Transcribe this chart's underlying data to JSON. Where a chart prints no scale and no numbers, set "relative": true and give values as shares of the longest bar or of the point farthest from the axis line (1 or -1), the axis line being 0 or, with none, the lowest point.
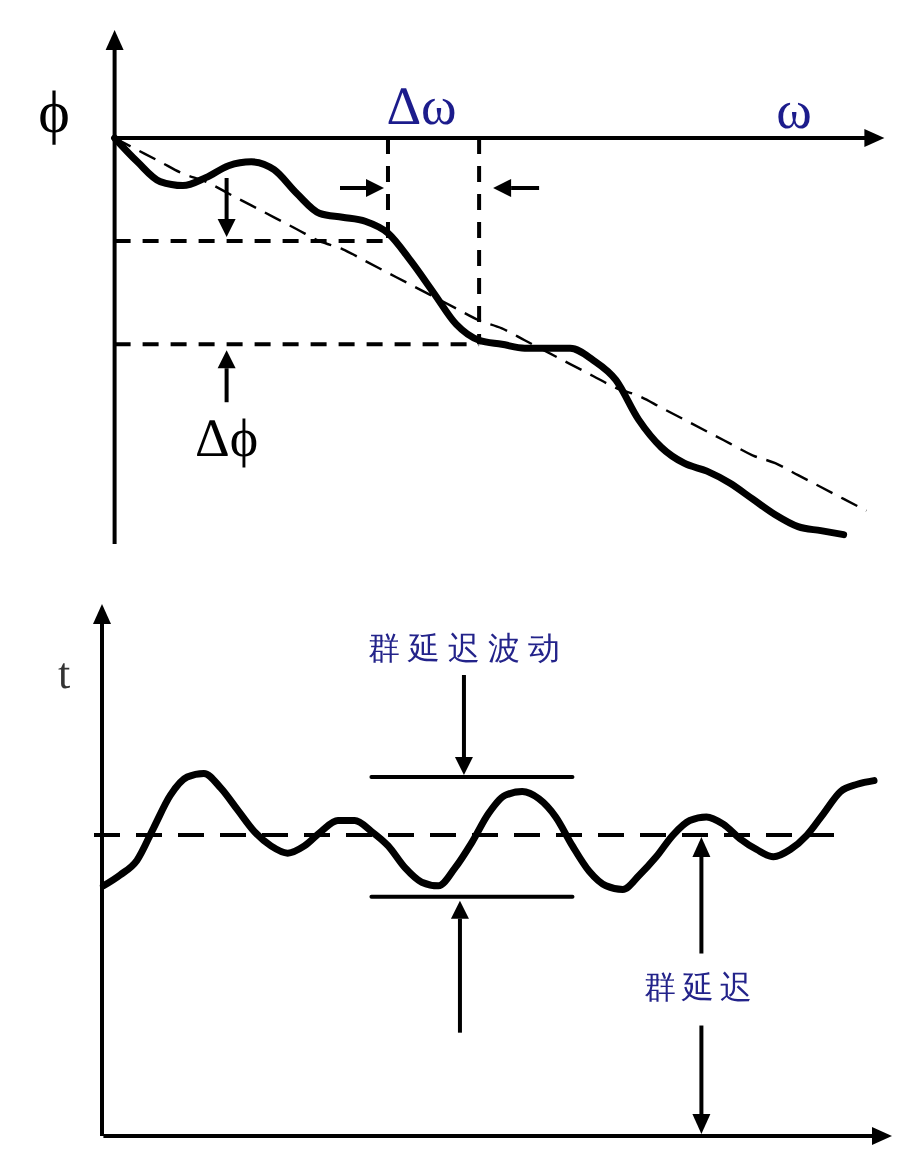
{
  "chart_data": [
    {
      "type": "line",
      "relative": true,
      "xlabel": "ω",
      "ylabel": "ϕ",
      "annotations": [
        "Δω",
        "Δϕ"
      ],
      "categories": [
        null,
        null,
        null,
        null,
        null,
        null,
        null,
        null,
        null,
        null,
        null,
        null,
        null,
        null,
        null,
        null,
        null,
        null,
        null,
        null,
        null,
        null,
        null,
        null,
        null,
        null,
        null,
        null,
        null,
        null,
        null,
        null,
        null,
        null
      ],
      "series": [
        {
          "color": "#000000",
          "values": [
            0,
            -0.06,
            -0.11,
            -0.12,
            -0.1,
            -0.07,
            -0.06,
            -0.08,
            -0.14,
            -0.19,
            -0.2,
            -0.21,
            -0.24,
            -0.31,
            -0.39,
            -0.47,
            -0.51,
            -0.52,
            -0.53,
            -0.53,
            -0.53,
            -0.56,
            -0.61,
            -0.71,
            -0.78,
            -0.82,
            -0.84,
            -0.87,
            -0.91,
            -0.95,
            -0.98,
            -0.99,
            -1,
            null
          ]
        },
        {
          "color": "#000000",
          "line_style": "dashed",
          "values": [
            0,
            -0.03,
            -0.06,
            -0.09,
            -0.11,
            -0.14,
            -0.17,
            -0.2,
            -0.23,
            -0.26,
            -0.28,
            -0.31,
            -0.34,
            -0.37,
            -0.4,
            -0.43,
            -0.46,
            -0.48,
            -0.51,
            -0.54,
            -0.57,
            -0.6,
            -0.63,
            -0.65,
            -0.68,
            -0.71,
            -0.74,
            -0.77,
            -0.8,
            -0.82,
            -0.85,
            -0.88,
            -0.91,
            -0.94
          ]
        },
        {
          "color": "#000000",
          "line_style": "dashed",
          "values": [
            -0.26,
            -0.26,
            -0.26,
            -0.26,
            -0.26,
            -0.26,
            -0.26,
            -0.26,
            -0.26,
            -0.26,
            -0.26,
            -0.26,
            -0.26,
            null,
            null,
            null,
            null,
            null,
            null,
            null,
            null,
            null,
            null,
            null,
            null,
            null,
            null,
            null,
            null,
            null,
            null,
            null,
            null,
            null
          ]
        },
        {
          "color": "#000000",
          "line_style": "dashed",
          "values": [
            -0.52,
            -0.52,
            -0.52,
            -0.52,
            -0.52,
            -0.52,
            -0.52,
            -0.52,
            -0.52,
            -0.52,
            -0.52,
            -0.52,
            -0.52,
            -0.52,
            -0.52,
            -0.52,
            -0.52,
            null,
            null,
            null,
            null,
            null,
            null,
            null,
            null,
            null,
            null,
            null,
            null,
            null,
            null,
            null,
            null,
            null
          ]
        }
      ]
    },
    {
      "type": "line",
      "relative": true,
      "ylabel": "t",
      "annotations": [
        "群延迟波动",
        "群延迟"
      ],
      "categories": [
        null,
        null,
        null,
        null,
        null,
        null,
        null,
        null,
        null,
        null,
        null,
        null,
        null,
        null,
        null,
        null,
        null,
        null,
        null,
        null,
        null,
        null,
        null,
        null,
        null,
        null,
        null,
        null,
        null,
        null,
        null,
        null,
        null,
        null,
        null,
        null,
        null,
        null,
        null,
        null,
        null,
        null,
        null,
        null,
        null,
        null,
        null
      ],
      "series": [
        {
          "color": "#000000",
          "values": [
            0.69,
            0.72,
            0.76,
            0.85,
            0.94,
            0.99,
            1,
            0.96,
            0.9,
            0.84,
            0.8,
            0.78,
            0.8,
            0.84,
            0.87,
            0.87,
            0.84,
            0.8,
            0.74,
            0.7,
            0.69,
            0.74,
            0.81,
            0.89,
            0.94,
            0.95,
            0.93,
            0.88,
            0.8,
            0.73,
            0.69,
            0.68,
            0.72,
            0.77,
            0.83,
            0.87,
            0.88,
            0.86,
            0.82,
            0.79,
            0.77,
            0.79,
            0.83,
            0.89,
            0.95,
            0.97,
            0.98
          ]
        },
        {
          "color": "#000000",
          "values": [
            null,
            null,
            null,
            null,
            null,
            null,
            null,
            null,
            null,
            null,
            null,
            null,
            null,
            null,
            null,
            null,
            0.99,
            0.99,
            0.99,
            0.99,
            0.99,
            0.99,
            0.99,
            0.99,
            0.99,
            0.99,
            0.99,
            0.99,
            0.99,
            null,
            null,
            null,
            null,
            null,
            null,
            null,
            null,
            null,
            null,
            null,
            null,
            null,
            null,
            null,
            null,
            null,
            null
          ]
        },
        {
          "color": "#000000",
          "values": [
            null,
            null,
            null,
            null,
            null,
            null,
            null,
            null,
            null,
            null,
            null,
            null,
            null,
            null,
            null,
            null,
            0.66,
            0.66,
            0.66,
            0.66,
            0.66,
            0.66,
            0.66,
            0.66,
            0.66,
            0.66,
            0.66,
            0.66,
            0.66,
            null,
            null,
            null,
            null,
            null,
            null,
            null,
            null,
            null,
            null,
            null,
            null,
            null,
            null,
            null,
            null,
            null,
            null
          ]
        }
      ],
      "ref_lines": [
        {
          "axis": "y",
          "value": 0.83,
          "line_style": "dashed",
          "color": "#000000"
        }
      ]
    }
  ]
}
